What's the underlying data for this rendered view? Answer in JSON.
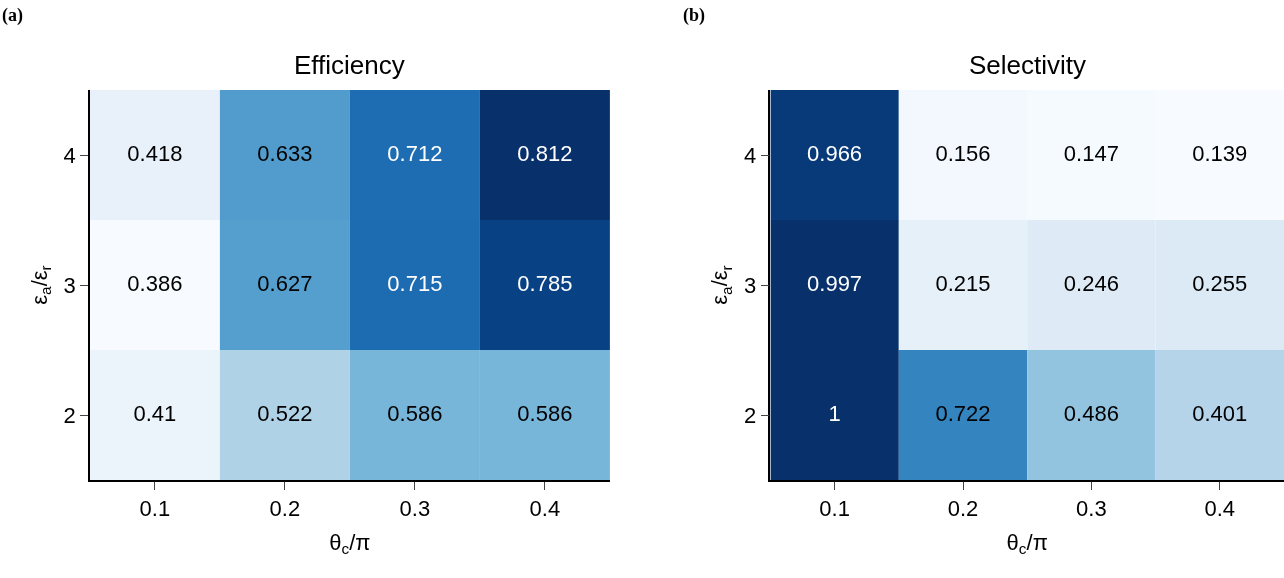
{
  "chart_data": [
    {
      "type": "heatmap",
      "title": "Efficiency",
      "xlabel": "θ$_{c}$/π",
      "ylabel": "ε$_{a}$/ε$_{r}$",
      "annotations": [
        "(a)"
      ],
      "data_labels": true,
      "categories": [
        "0.1",
        "0.2",
        "0.3",
        "0.4"
      ],
      "y_categories": [
        "4",
        "3",
        "2"
      ],
      "cells": [
        [
          0.418,
          0.633,
          0.712,
          0.812
        ],
        [
          0.386,
          0.627,
          0.715,
          0.785
        ],
        [
          0.41,
          0.522,
          0.586,
          0.586
        ]
      ]
    },
    {
      "type": "heatmap",
      "title": "Selectivity",
      "xlabel": "θ$_{c}$/π",
      "ylabel": "ε$_{a}$/ε$_{r}$",
      "annotations": [
        "(b)"
      ],
      "data_labels": true,
      "categories": [
        "0.1",
        "0.2",
        "0.3",
        "0.4"
      ],
      "y_categories": [
        "4",
        "3",
        "2"
      ],
      "cells": [
        [
          0.966,
          0.156,
          0.147,
          0.139
        ],
        [
          0.997,
          0.215,
          0.246,
          0.255
        ],
        [
          1,
          0.722,
          0.486,
          0.401
        ]
      ]
    }
  ]
}
